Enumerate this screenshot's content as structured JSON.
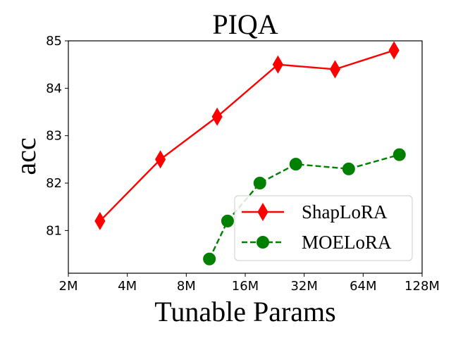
{
  "chart_data": {
    "type": "line",
    "title": "PIQA",
    "xlabel": "Tunable Params",
    "ylabel": "acc",
    "x_scale": "log2",
    "xlim_millions": [
      2,
      128
    ],
    "ylim": [
      80.1,
      85
    ],
    "x_ticks": [
      {
        "value": 2,
        "label": "2M"
      },
      {
        "value": 4,
        "label": "4M"
      },
      {
        "value": 8,
        "label": "8M"
      },
      {
        "value": 16,
        "label": "16M"
      },
      {
        "value": 32,
        "label": "32M"
      },
      {
        "value": 64,
        "label": "64M"
      },
      {
        "value": 128,
        "label": "128M"
      }
    ],
    "y_ticks": [
      {
        "value": 81,
        "label": "81"
      },
      {
        "value": 82,
        "label": "82"
      },
      {
        "value": 83,
        "label": "83"
      },
      {
        "value": 84,
        "label": "84"
      },
      {
        "value": 85,
        "label": "85"
      }
    ],
    "legend_position": "bottom-right",
    "series": [
      {
        "name": "ShapLoRA",
        "color": "#ff0000",
        "line_style": "solid",
        "marker": "thin_diamond",
        "x": [
          2.9,
          5.9,
          11.5,
          23.5,
          46,
          92
        ],
        "y": [
          81.2,
          82.5,
          83.4,
          84.5,
          84.4,
          84.8
        ]
      },
      {
        "name": "MOELoRA",
        "color": "#008000",
        "line_style": "dashed",
        "marker": "circle",
        "x": [
          10.5,
          13,
          19,
          29,
          54,
          98
        ],
        "y": [
          80.4,
          81.2,
          82.0,
          82.4,
          82.3,
          82.6
        ]
      }
    ]
  }
}
